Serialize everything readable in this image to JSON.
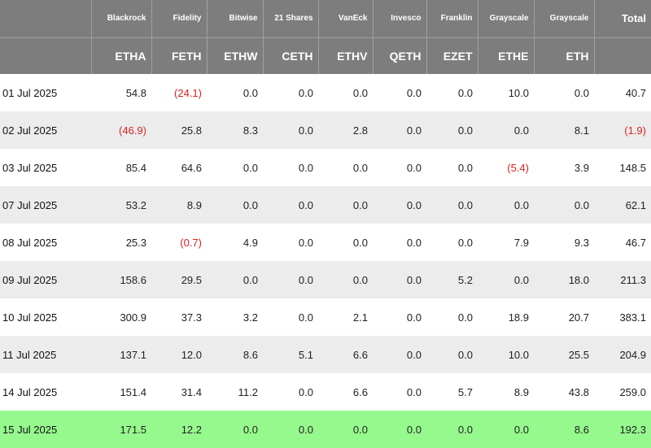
{
  "colors": {
    "header_bg": "#7d7d7d",
    "stripe": "#ececec",
    "highlight": "#96f98d",
    "negative": "#e02020"
  },
  "header": {
    "issuers": [
      "",
      "Blackrock",
      "Fidelity",
      "Bitwise",
      "21 Shares",
      "VanEck",
      "Invesco",
      "Franklin",
      "Grayscale",
      "Grayscale",
      "Total"
    ],
    "tickers": [
      "",
      "ETHA",
      "FETH",
      "ETHW",
      "CETH",
      "ETHV",
      "QETH",
      "EZET",
      "ETHE",
      "ETH",
      ""
    ]
  },
  "rows": [
    {
      "date": "01 Jul 2025",
      "values": [
        "54.8",
        "(24.1)",
        "0.0",
        "0.0",
        "0.0",
        "0.0",
        "0.0",
        "10.0",
        "0.0",
        "40.7"
      ]
    },
    {
      "date": "02 Jul 2025",
      "values": [
        "(46.9)",
        "25.8",
        "8.3",
        "0.0",
        "2.8",
        "0.0",
        "0.0",
        "0.0",
        "8.1",
        "(1.9)"
      ]
    },
    {
      "date": "03 Jul 2025",
      "values": [
        "85.4",
        "64.6",
        "0.0",
        "0.0",
        "0.0",
        "0.0",
        "0.0",
        "(5.4)",
        "3.9",
        "148.5"
      ]
    },
    {
      "date": "07 Jul 2025",
      "values": [
        "53.2",
        "8.9",
        "0.0",
        "0.0",
        "0.0",
        "0.0",
        "0.0",
        "0.0",
        "0.0",
        "62.1"
      ]
    },
    {
      "date": "08 Jul 2025",
      "values": [
        "25.3",
        "(0.7)",
        "4.9",
        "0.0",
        "0.0",
        "0.0",
        "0.0",
        "7.9",
        "9.3",
        "46.7"
      ]
    },
    {
      "date": "09 Jul 2025",
      "values": [
        "158.6",
        "29.5",
        "0.0",
        "0.0",
        "0.0",
        "0.0",
        "5.2",
        "0.0",
        "18.0",
        "211.3"
      ]
    },
    {
      "date": "10 Jul 2025",
      "values": [
        "300.9",
        "37.3",
        "3.2",
        "0.0",
        "2.1",
        "0.0",
        "0.0",
        "18.9",
        "20.7",
        "383.1"
      ]
    },
    {
      "date": "11 Jul 2025",
      "values": [
        "137.1",
        "12.0",
        "8.6",
        "5.1",
        "6.6",
        "0.0",
        "0.0",
        "10.0",
        "25.5",
        "204.9"
      ]
    },
    {
      "date": "14 Jul 2025",
      "values": [
        "151.4",
        "31.4",
        "11.2",
        "0.0",
        "6.6",
        "0.0",
        "5.7",
        "8.9",
        "43.8",
        "259.0"
      ]
    },
    {
      "date": "15 Jul 2025",
      "values": [
        "171.5",
        "12.2",
        "0.0",
        "0.0",
        "0.0",
        "0.0",
        "0.0",
        "0.0",
        "8.6",
        "192.3"
      ],
      "highlighted": true
    }
  ]
}
